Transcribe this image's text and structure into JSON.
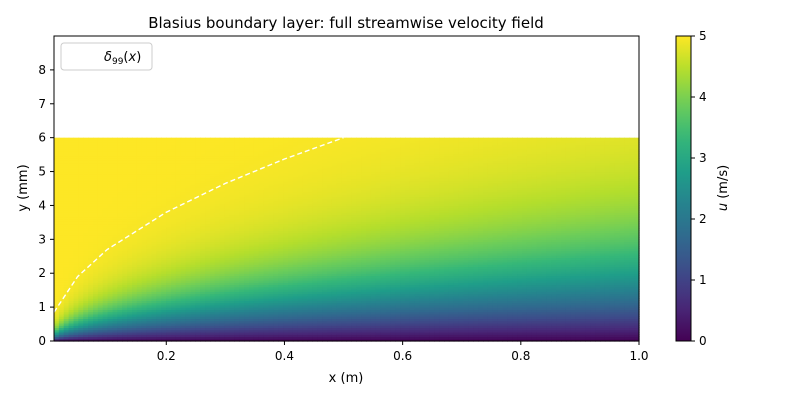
{
  "chart_data": {
    "type": "heatmap",
    "title": "Blasius boundary layer: full streamwise velocity field",
    "xlabel": "x (m)",
    "ylabel": "y (mm)",
    "colorbar_label_italic": "u",
    "colorbar_label_rest": " (m/s)",
    "xlim": [
      0.01,
      1.0
    ],
    "ylim": [
      0,
      9
    ],
    "field_ymax": 6,
    "x_ticks": [
      0.2,
      0.4,
      0.6,
      0.8,
      1.0
    ],
    "x_tick_labels": [
      "0.2",
      "0.4",
      "0.6",
      "0.8",
      "1.0"
    ],
    "y_ticks": [
      0,
      1,
      2,
      3,
      4,
      5,
      6,
      7,
      8
    ],
    "y_tick_labels": [
      "0",
      "1",
      "2",
      "3",
      "4",
      "5",
      "6",
      "7",
      "8"
    ],
    "colorbar_ticks": [
      0,
      1,
      2,
      3,
      4,
      5
    ],
    "colorbar_tick_labels": [
      "0",
      "1",
      "2",
      "3",
      "4",
      "5"
    ],
    "clim": [
      0,
      5
    ],
    "colormap": "viridis",
    "grid": false,
    "legend": {
      "placement": "upper-left",
      "entries": [
        {
          "label_symbol": "δ",
          "label_subscript": "99",
          "label_arg_open": "(",
          "label_arg": "x",
          "label_arg_close": ")",
          "style": "dashed",
          "color": "#ffffff"
        }
      ]
    },
    "field": {
      "U_inf_m_per_s": 5,
      "delta99_mm_at_x": {
        "x": [
          0.01,
          0.05,
          0.1,
          0.2,
          0.3,
          0.4,
          0.5
        ],
        "y": [
          0.85,
          1.9,
          2.7,
          3.8,
          4.65,
          5.37,
          6.0
        ]
      }
    }
  }
}
